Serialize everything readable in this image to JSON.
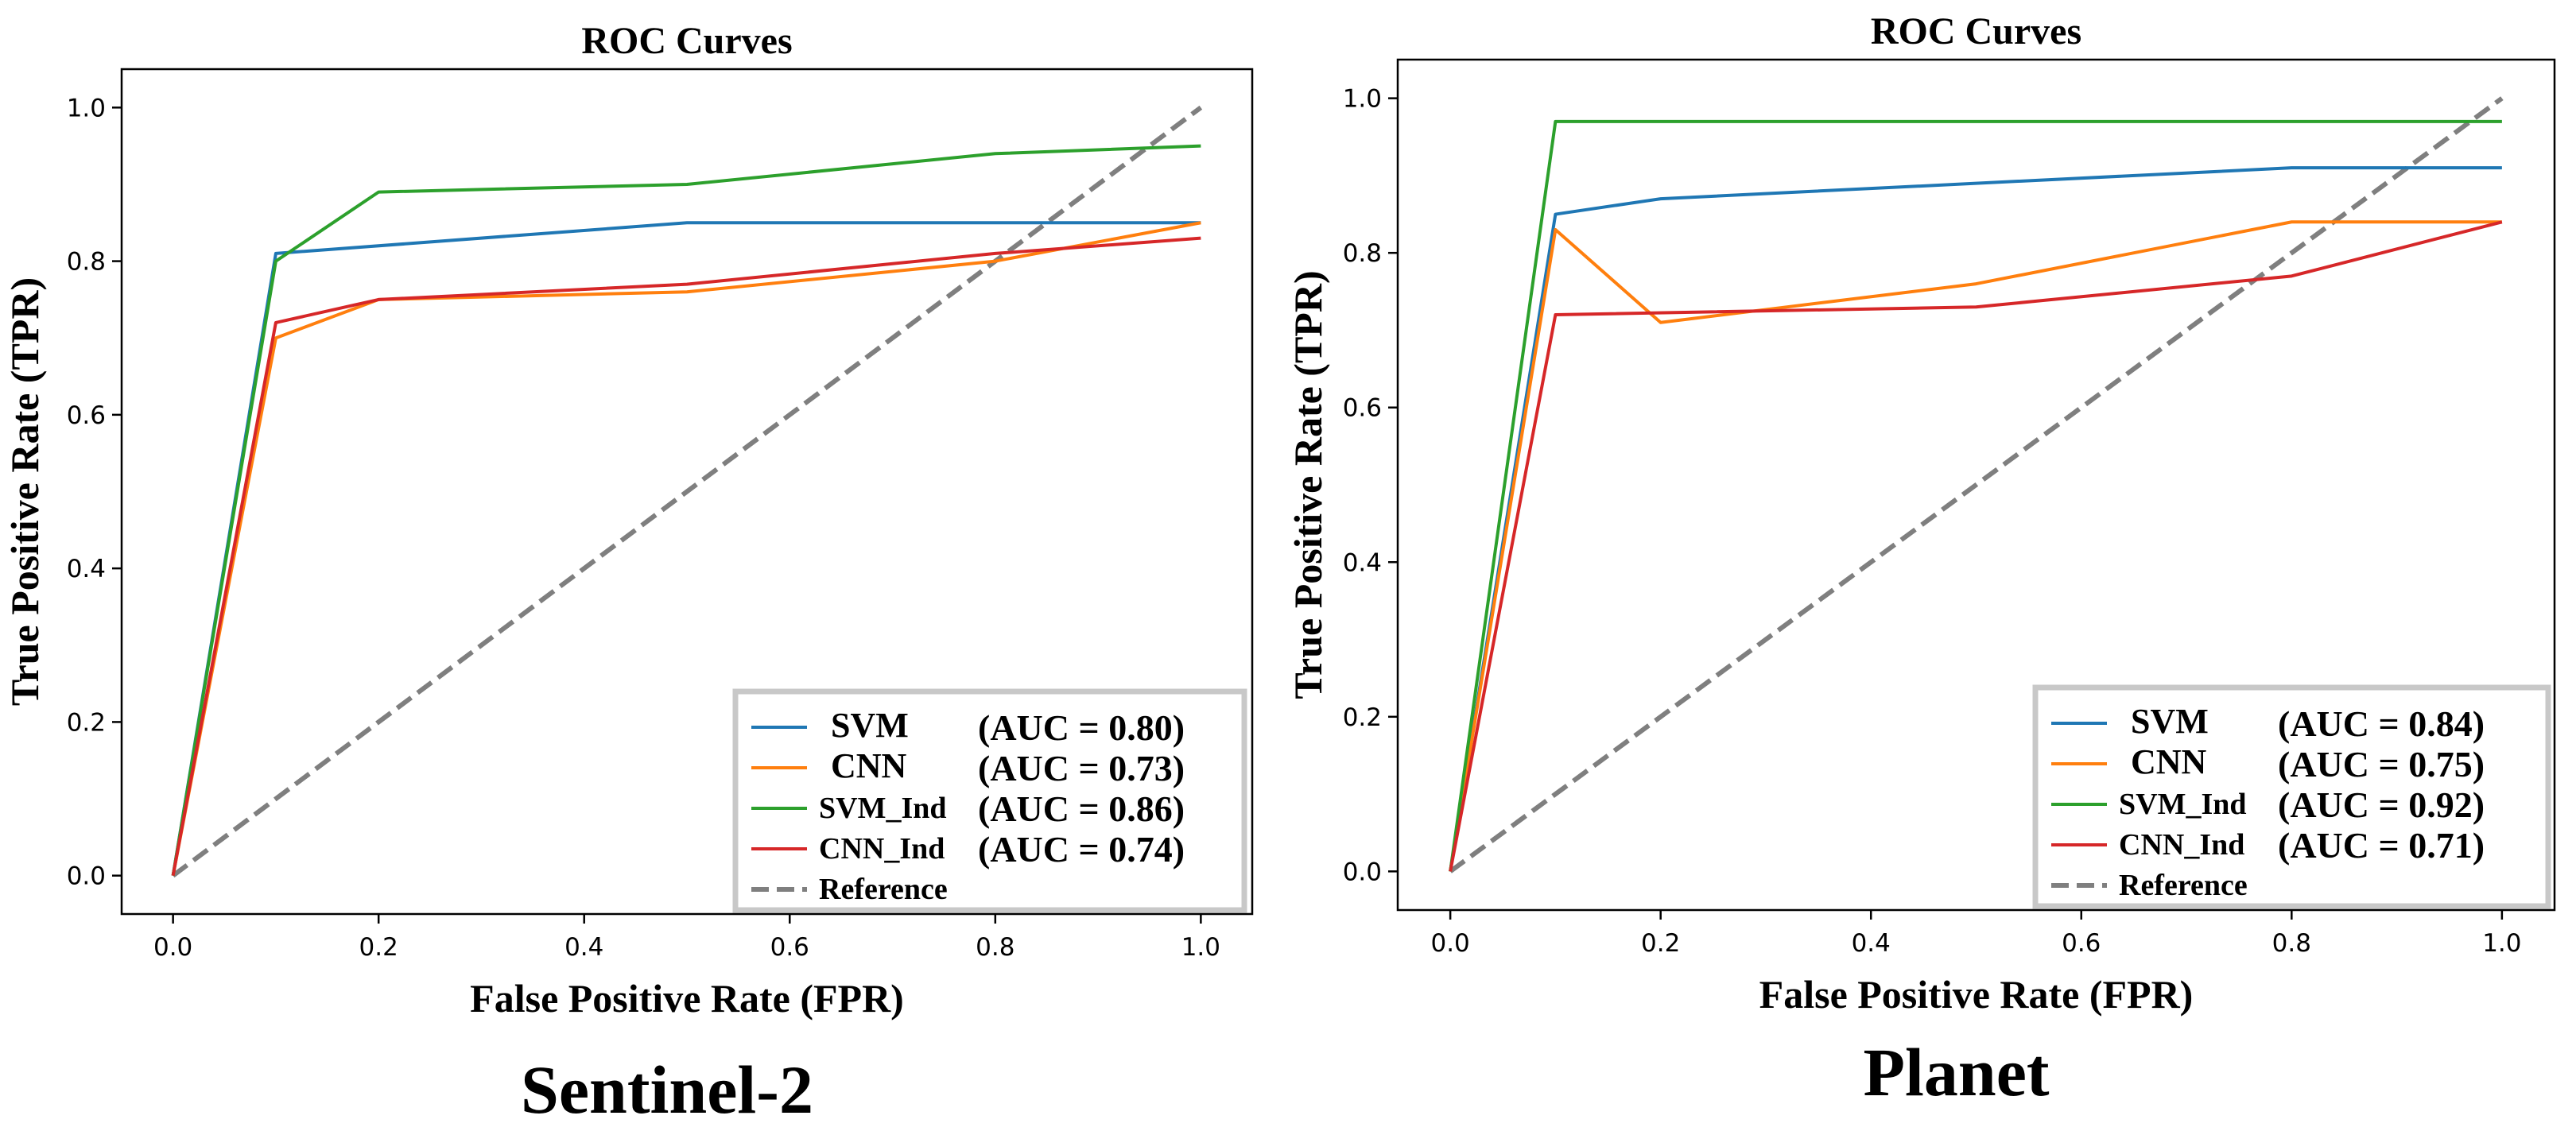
{
  "colors": {
    "svm": "#1f77b4",
    "cnn": "#ff7f0e",
    "svm_ind": "#2ca02c",
    "cnn_ind": "#d62728",
    "reference": "#7f7f7f"
  },
  "chart_data": [
    {
      "type": "line",
      "title": "ROC Curves",
      "caption": "Sentinel-2",
      "xlabel": "False Positive Rate (FPR)",
      "ylabel": "True Positive Rate (TPR)",
      "xlim": [
        -0.05,
        1.05
      ],
      "ylim": [
        -0.05,
        1.05
      ],
      "xticks": [
        "0.0",
        "0.2",
        "0.4",
        "0.6",
        "0.8",
        "1.0"
      ],
      "yticks": [
        "0.0",
        "0.2",
        "0.4",
        "0.6",
        "0.8",
        "1.0"
      ],
      "legend_position": "lower-right",
      "series": [
        {
          "name": "SVM",
          "auc": "(AUC = 0.80)",
          "color_key": "svm",
          "x": [
            0,
            0.1,
            0.5,
            1.0
          ],
          "y": [
            0,
            0.81,
            0.85,
            0.85
          ]
        },
        {
          "name": "CNN",
          "auc": "(AUC = 0.73)",
          "color_key": "cnn",
          "x": [
            0,
            0.1,
            0.2,
            0.5,
            0.8,
            1.0
          ],
          "y": [
            0,
            0.7,
            0.75,
            0.76,
            0.8,
            0.85
          ]
        },
        {
          "name": "SVM_Ind",
          "auc": "(AUC = 0.86)",
          "color_key": "svm_ind",
          "x": [
            0,
            0.1,
            0.2,
            0.5,
            0.8,
            1.0
          ],
          "y": [
            0,
            0.8,
            0.89,
            0.9,
            0.94,
            0.95
          ]
        },
        {
          "name": "CNN_Ind",
          "auc": "(AUC = 0.74)",
          "color_key": "cnn_ind",
          "x": [
            0,
            0.1,
            0.2,
            0.5,
            0.8,
            1.0
          ],
          "y": [
            0,
            0.72,
            0.75,
            0.77,
            0.81,
            0.83
          ]
        },
        {
          "name": "Reference",
          "auc": "",
          "color_key": "reference",
          "dashed": true,
          "x": [
            0,
            1
          ],
          "y": [
            0,
            1
          ]
        }
      ]
    },
    {
      "type": "line",
      "title": "ROC Curves",
      "caption": "Planet",
      "xlabel": "False Positive Rate (FPR)",
      "ylabel": "True Positive Rate (TPR)",
      "xlim": [
        -0.05,
        1.05
      ],
      "ylim": [
        -0.05,
        1.05
      ],
      "xticks": [
        "0.0",
        "0.2",
        "0.4",
        "0.6",
        "0.8",
        "1.0"
      ],
      "yticks": [
        "0.0",
        "0.2",
        "0.4",
        "0.6",
        "0.8",
        "1.0"
      ],
      "legend_position": "lower-right",
      "series": [
        {
          "name": "SVM",
          "auc": "(AUC = 0.84)",
          "color_key": "svm",
          "x": [
            0,
            0.1,
            0.2,
            0.5,
            0.8,
            1.0
          ],
          "y": [
            0,
            0.85,
            0.87,
            0.89,
            0.91,
            0.91
          ]
        },
        {
          "name": "CNN",
          "auc": "(AUC = 0.75)",
          "color_key": "cnn",
          "x": [
            0,
            0.1,
            0.2,
            0.5,
            0.8,
            1.0
          ],
          "y": [
            0,
            0.83,
            0.71,
            0.76,
            0.84,
            0.84
          ]
        },
        {
          "name": "SVM_Ind",
          "auc": "(AUC = 0.92)",
          "color_key": "svm_ind",
          "x": [
            0,
            0.1,
            1.0
          ],
          "y": [
            0,
            0.97,
            0.97
          ]
        },
        {
          "name": "CNN_Ind",
          "auc": "(AUC = 0.71)",
          "color_key": "cnn_ind",
          "x": [
            0,
            0.1,
            0.5,
            0.8,
            1.0
          ],
          "y": [
            0,
            0.72,
            0.73,
            0.77,
            0.84
          ]
        },
        {
          "name": "Reference",
          "auc": "",
          "color_key": "reference",
          "dashed": true,
          "x": [
            0,
            1
          ],
          "y": [
            0,
            1
          ]
        }
      ]
    }
  ]
}
